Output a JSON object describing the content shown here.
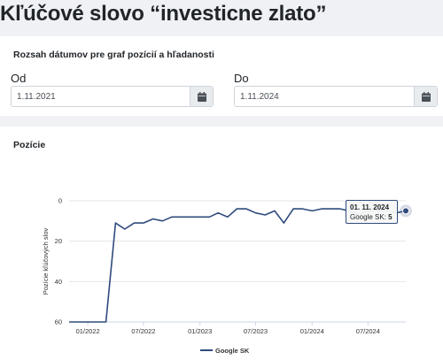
{
  "page": {
    "title": "Kľúčové slovo “investicne zlato”"
  },
  "date_range": {
    "title": "Rozsah dátumov pre graf pozícií a hľadanosti",
    "from": {
      "label": "Od",
      "value": "1.11.2021",
      "icon": "calendar-icon"
    },
    "to": {
      "label": "Do",
      "value": "1.11.2024",
      "icon": "calendar-icon"
    }
  },
  "positions": {
    "title": "Pozície",
    "tooltip": {
      "date": "01. 11. 2024",
      "series": "Google SK:",
      "value": "5"
    }
  },
  "colors": {
    "series": "#2f4b7c"
  },
  "chart_data": {
    "type": "line",
    "ylabel": "Pozície kľúčových slov",
    "xlabel": "",
    "y_reversed": true,
    "ylim": [
      0,
      60
    ],
    "yticks": [
      0,
      20,
      40,
      60
    ],
    "xticks": [
      "01/2022",
      "07/2022",
      "01/2023",
      "07/2023",
      "01/2024",
      "07/2024"
    ],
    "xlim": [
      "2021-11-01",
      "2024-11-01"
    ],
    "legend": "bottom-center",
    "grid": "horizontal",
    "series": [
      {
        "name": "Google SK",
        "points": [
          [
            "2021-11-01",
            60
          ],
          [
            "2021-12-01",
            60
          ],
          [
            "2022-01-01",
            60
          ],
          [
            "2022-02-01",
            60
          ],
          [
            "2022-03-01",
            60
          ],
          [
            "2022-04-01",
            11
          ],
          [
            "2022-05-01",
            14
          ],
          [
            "2022-06-01",
            11
          ],
          [
            "2022-07-01",
            11
          ],
          [
            "2022-08-01",
            9
          ],
          [
            "2022-09-01",
            10
          ],
          [
            "2022-10-01",
            8
          ],
          [
            "2022-11-01",
            8
          ],
          [
            "2022-12-01",
            8
          ],
          [
            "2023-01-01",
            8
          ],
          [
            "2023-02-01",
            8
          ],
          [
            "2023-03-01",
            6
          ],
          [
            "2023-04-01",
            8
          ],
          [
            "2023-05-01",
            4
          ],
          [
            "2023-06-01",
            4
          ],
          [
            "2023-07-01",
            6
          ],
          [
            "2023-08-01",
            7
          ],
          [
            "2023-09-01",
            5
          ],
          [
            "2023-10-01",
            11
          ],
          [
            "2023-11-01",
            4
          ],
          [
            "2023-12-01",
            4
          ],
          [
            "2024-01-01",
            5
          ],
          [
            "2024-02-01",
            4
          ],
          [
            "2024-03-01",
            4
          ],
          [
            "2024-04-01",
            4
          ],
          [
            "2024-05-01",
            5
          ],
          [
            "2024-06-01",
            7
          ],
          [
            "2024-07-01",
            5
          ],
          [
            "2024-08-01",
            5
          ],
          [
            "2024-09-01",
            5
          ],
          [
            "2024-10-01",
            6
          ],
          [
            "2024-11-01",
            5
          ]
        ]
      }
    ]
  }
}
